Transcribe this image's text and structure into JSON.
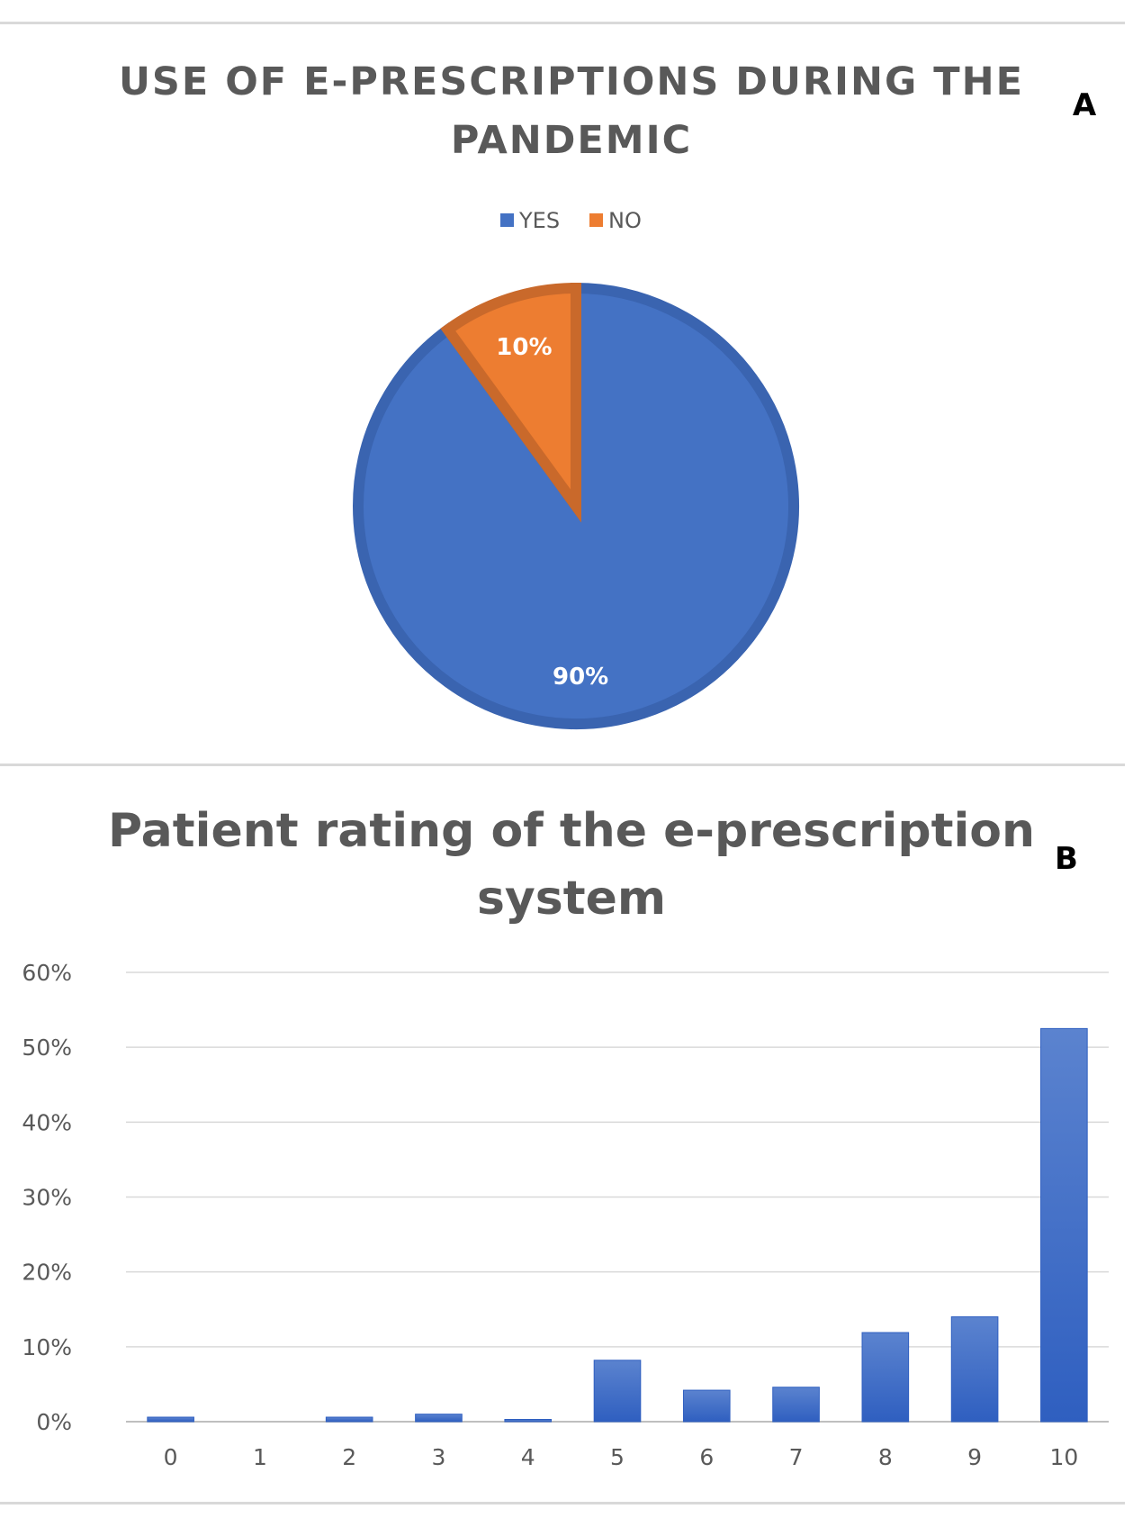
{
  "chart_data": [
    {
      "type": "pie",
      "panel_label": "A",
      "title_line1": "USE OF E-PRESCRIPTIONS DURING THE",
      "title_line2": "PANDEMIC",
      "legend": [
        "YES",
        "NO"
      ],
      "legend_position": "top",
      "slices": [
        {
          "label": "YES",
          "value": 90,
          "display": "90%",
          "color": "#4472c4"
        },
        {
          "label": "NO",
          "value": 10,
          "display": "10%",
          "color": "#ed7d31"
        }
      ]
    },
    {
      "type": "bar",
      "panel_label": "B",
      "title_line1": "Patient rating of the e-prescription",
      "title_line2": "system",
      "categories": [
        "0",
        "1",
        "2",
        "3",
        "4",
        "5",
        "6",
        "7",
        "8",
        "9",
        "10"
      ],
      "values": [
        0.6,
        0.0,
        0.6,
        1.0,
        0.3,
        8.2,
        4.2,
        4.6,
        11.9,
        14.0,
        52.5
      ],
      "ylim": [
        0,
        60
      ],
      "yticks": [
        "0%",
        "10%",
        "20%",
        "30%",
        "40%",
        "50%",
        "60%"
      ],
      "grid": true,
      "color": "#4472c4"
    }
  ]
}
